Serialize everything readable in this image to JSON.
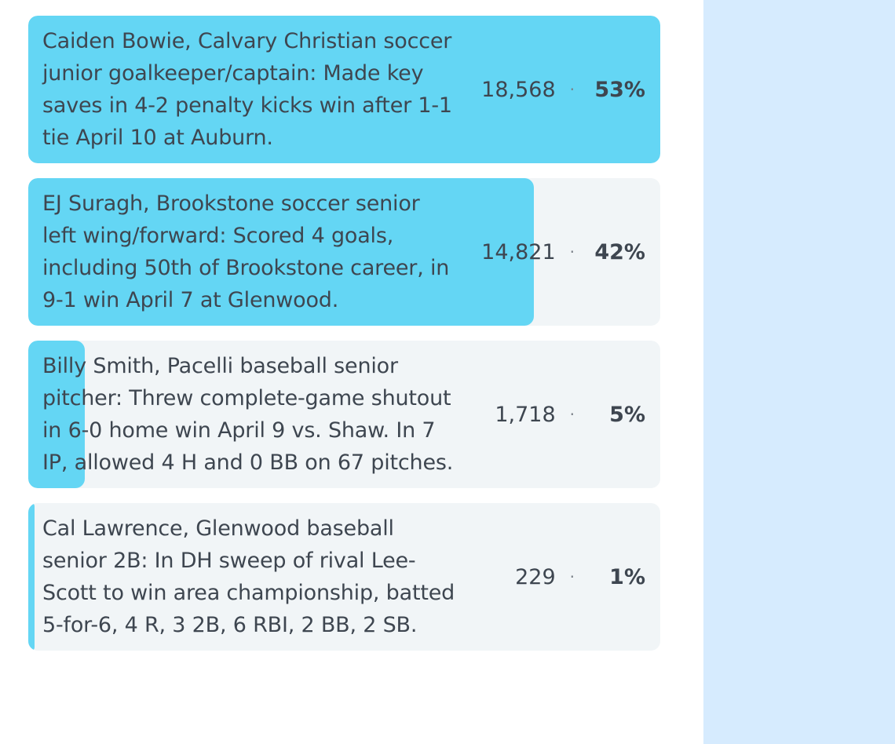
{
  "colors": {
    "fill": "#64d6f4",
    "track": "#f1f5f7",
    "text": "#3e4650",
    "side_panel": "#d6ebfe"
  },
  "poll": {
    "options": [
      {
        "label": "Caiden Bowie, Calvary Christian soccer junior goalkeeper/captain: Made key saves in 4-2 penalty kicks win after 1-1 tie April 10 at Auburn.",
        "votes": "18,568",
        "percent_label": "53%",
        "share": 1.0
      },
      {
        "label": "EJ Suragh, Brookstone soccer senior left wing/forward: Scored 4 goals, including 50th of Brookstone career, in 9-1 win April 7 at Glenwood.",
        "votes": "14,821",
        "percent_label": "42%",
        "share": 0.8
      },
      {
        "label": "Billy Smith, Pacelli baseball senior pitcher: Threw complete-game shutout in 6-0 home win April 9 vs. Shaw. In 7 IP, allowed 4 H and 0 BB on 67 pitches.",
        "votes": "1,718",
        "percent_label": "5%",
        "share": 0.09
      },
      {
        "label": "Cal Lawrence, Glenwood baseball senior 2B: In DH sweep of rival Lee-Scott to win area championship, batted 5-for-6, 4 R, 3 2B, 6 RBI, 2 BB, 2 SB.",
        "votes": "229",
        "percent_label": "1%",
        "share": 0.01
      }
    ]
  }
}
